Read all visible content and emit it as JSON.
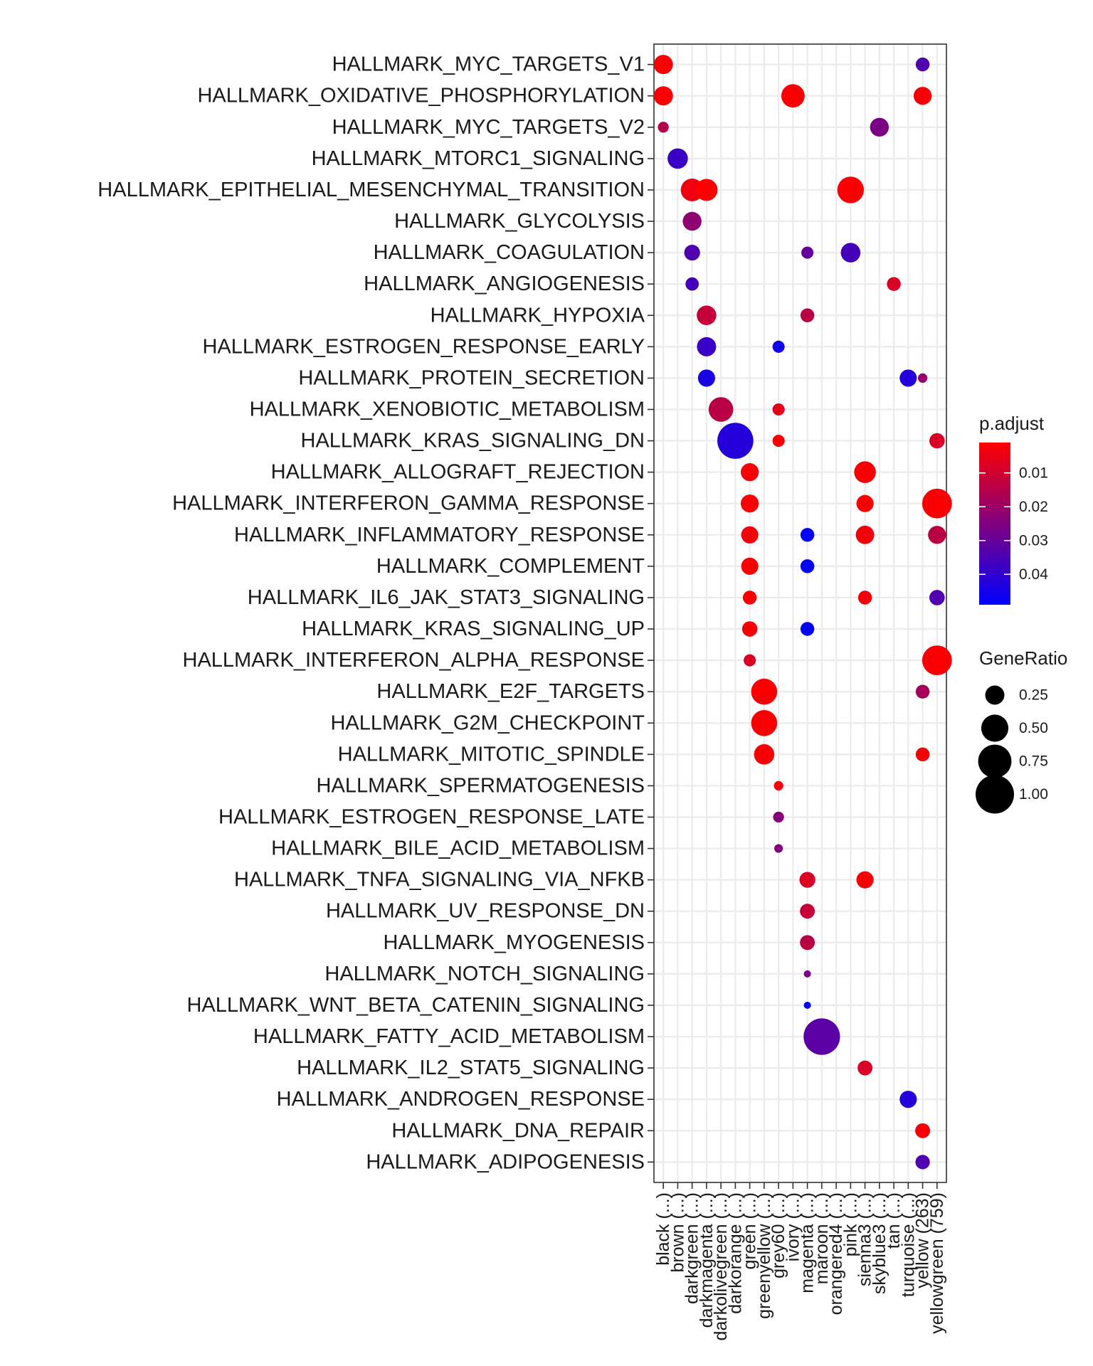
{
  "chart_data": {
    "type": "scatter",
    "title": "",
    "xlabel": "",
    "ylabel": "",
    "x_categories": [
      "black (...)",
      "brown (...)",
      "darkgreen (...)",
      "darkmagenta (...)",
      "darkolivegreen (...)",
      "darkorange (...)",
      "green (...)",
      "greenyellow (...)",
      "grey60 (...)",
      "ivory (...)",
      "magenta (...)",
      "maroon (...)",
      "orangered4 (...)",
      "pink (...)",
      "sienna3 (...)",
      "skyblue3 (...)",
      "tan (...)",
      "turquoise (...)",
      "yellow (263)",
      "yellowgreen (759)"
    ],
    "y_categories": [
      "HALLMARK_MYC_TARGETS_V1",
      "HALLMARK_OXIDATIVE_PHOSPHORYLATION",
      "HALLMARK_MYC_TARGETS_V2",
      "HALLMARK_MTORC1_SIGNALING",
      "HALLMARK_EPITHELIAL_MESENCHYMAL_TRANSITION",
      "HALLMARK_GLYCOLYSIS",
      "HALLMARK_COAGULATION",
      "HALLMARK_ANGIOGENESIS",
      "HALLMARK_HYPOXIA",
      "HALLMARK_ESTROGEN_RESPONSE_EARLY",
      "HALLMARK_PROTEIN_SECRETION",
      "HALLMARK_XENOBIOTIC_METABOLISM",
      "HALLMARK_KRAS_SIGNALING_DN",
      "HALLMARK_ALLOGRAFT_REJECTION",
      "HALLMARK_INTERFERON_GAMMA_RESPONSE",
      "HALLMARK_INFLAMMATORY_RESPONSE",
      "HALLMARK_COMPLEMENT",
      "HALLMARK_IL6_JAK_STAT3_SIGNALING",
      "HALLMARK_KRAS_SIGNALING_UP",
      "HALLMARK_INTERFERON_ALPHA_RESPONSE",
      "HALLMARK_E2F_TARGETS",
      "HALLMARK_G2M_CHECKPOINT",
      "HALLMARK_MITOTIC_SPINDLE",
      "HALLMARK_SPERMATOGENESIS",
      "HALLMARK_ESTROGEN_RESPONSE_LATE",
      "HALLMARK_BILE_ACID_METABOLISM",
      "HALLMARK_TNFA_SIGNALING_VIA_NFKB",
      "HALLMARK_UV_RESPONSE_DN",
      "HALLMARK_MYOGENESIS",
      "HALLMARK_NOTCH_SIGNALING",
      "HALLMARK_WNT_BETA_CATENIN_SIGNALING",
      "HALLMARK_FATTY_ACID_METABOLISM",
      "HALLMARK_IL2_STAT5_SIGNALING",
      "HALLMARK_ANDROGEN_RESPONSE",
      "HALLMARK_DNA_REPAIR",
      "HALLMARK_ADIPOGENESIS"
    ],
    "points": [
      {
        "x": "black (...)",
        "y": "HALLMARK_MYC_TARGETS_V1",
        "gene_ratio": 0.25,
        "p_adjust": 0.002
      },
      {
        "x": "black (...)",
        "y": "HALLMARK_OXIDATIVE_PHOSPHORYLATION",
        "gene_ratio": 0.25,
        "p_adjust": 0.002
      },
      {
        "x": "black (...)",
        "y": "HALLMARK_MYC_TARGETS_V2",
        "gene_ratio": 0.08,
        "p_adjust": 0.015
      },
      {
        "x": "brown (...)",
        "y": "HALLMARK_MTORC1_SIGNALING",
        "gene_ratio": 0.28,
        "p_adjust": 0.038
      },
      {
        "x": "darkgreen (...)",
        "y": "HALLMARK_EPITHELIAL_MESENCHYMAL_TRANSITION",
        "gene_ratio": 0.35,
        "p_adjust": 0.004
      },
      {
        "x": "darkgreen (...)",
        "y": "HALLMARK_GLYCOLYSIS",
        "gene_ratio": 0.24,
        "p_adjust": 0.022
      },
      {
        "x": "darkgreen (...)",
        "y": "HALLMARK_COAGULATION",
        "gene_ratio": 0.17,
        "p_adjust": 0.034
      },
      {
        "x": "darkgreen (...)",
        "y": "HALLMARK_ANGIOGENESIS",
        "gene_ratio": 0.12,
        "p_adjust": 0.036
      },
      {
        "x": "darkmagenta (...)",
        "y": "HALLMARK_EPITHELIAL_MESENCHYMAL_TRANSITION",
        "gene_ratio": 0.33,
        "p_adjust": 0.001
      },
      {
        "x": "darkmagenta (...)",
        "y": "HALLMARK_HYPOXIA",
        "gene_ratio": 0.26,
        "p_adjust": 0.012
      },
      {
        "x": "darkmagenta (...)",
        "y": "HALLMARK_ESTROGEN_RESPONSE_EARLY",
        "gene_ratio": 0.25,
        "p_adjust": 0.038
      },
      {
        "x": "darkmagenta (...)",
        "y": "HALLMARK_PROTEIN_SECRETION",
        "gene_ratio": 0.2,
        "p_adjust": 0.044
      },
      {
        "x": "darkolivegreen (...)",
        "y": "HALLMARK_XENOBIOTIC_METABOLISM",
        "gene_ratio": 0.41,
        "p_adjust": 0.014
      },
      {
        "x": "darkorange (...)",
        "y": "HALLMARK_KRAS_SIGNALING_DN",
        "gene_ratio": 0.88,
        "p_adjust": 0.042
      },
      {
        "x": "green (...)",
        "y": "HALLMARK_ALLOGRAFT_REJECTION",
        "gene_ratio": 0.22,
        "p_adjust": 0.002
      },
      {
        "x": "green (...)",
        "y": "HALLMARK_INTERFERON_GAMMA_RESPONSE",
        "gene_ratio": 0.22,
        "p_adjust": 0.002
      },
      {
        "x": "green (...)",
        "y": "HALLMARK_INFLAMMATORY_RESPONSE",
        "gene_ratio": 0.2,
        "p_adjust": 0.003
      },
      {
        "x": "green (...)",
        "y": "HALLMARK_COMPLEMENT",
        "gene_ratio": 0.2,
        "p_adjust": 0.002
      },
      {
        "x": "green (...)",
        "y": "HALLMARK_IL6_JAK_STAT3_SIGNALING",
        "gene_ratio": 0.13,
        "p_adjust": 0.002
      },
      {
        "x": "green (...)",
        "y": "HALLMARK_KRAS_SIGNALING_UP",
        "gene_ratio": 0.16,
        "p_adjust": 0.002
      },
      {
        "x": "green (...)",
        "y": "HALLMARK_INTERFERON_ALPHA_RESPONSE",
        "gene_ratio": 0.1,
        "p_adjust": 0.008
      },
      {
        "x": "greenyellow (...)",
        "y": "HALLMARK_E2F_TARGETS",
        "gene_ratio": 0.46,
        "p_adjust": 0.002
      },
      {
        "x": "greenyellow (...)",
        "y": "HALLMARK_G2M_CHECKPOINT",
        "gene_ratio": 0.46,
        "p_adjust": 0.002
      },
      {
        "x": "greenyellow (...)",
        "y": "HALLMARK_MITOTIC_SPINDLE",
        "gene_ratio": 0.28,
        "p_adjust": 0.002
      },
      {
        "x": "grey60 (...)",
        "y": "HALLMARK_ESTROGEN_RESPONSE_EARLY",
        "gene_ratio": 0.1,
        "p_adjust": 0.046
      },
      {
        "x": "grey60 (...)",
        "y": "HALLMARK_XENOBIOTIC_METABOLISM",
        "gene_ratio": 0.1,
        "p_adjust": 0.006
      },
      {
        "x": "grey60 (...)",
        "y": "HALLMARK_KRAS_SIGNALING_DN",
        "gene_ratio": 0.1,
        "p_adjust": 0.002
      },
      {
        "x": "grey60 (...)",
        "y": "HALLMARK_SPERMATOGENESIS",
        "gene_ratio": 0.06,
        "p_adjust": 0.002
      },
      {
        "x": "grey60 (...)",
        "y": "HALLMARK_ESTROGEN_RESPONSE_LATE",
        "gene_ratio": 0.08,
        "p_adjust": 0.024
      },
      {
        "x": "grey60 (...)",
        "y": "HALLMARK_BILE_ACID_METABOLISM",
        "gene_ratio": 0.05,
        "p_adjust": 0.024
      },
      {
        "x": "ivory (...)",
        "y": "HALLMARK_OXIDATIVE_PHOSPHORYLATION",
        "gene_ratio": 0.37,
        "p_adjust": 0.002
      },
      {
        "x": "magenta (...)",
        "y": "HALLMARK_COAGULATION",
        "gene_ratio": 0.1,
        "p_adjust": 0.03
      },
      {
        "x": "magenta (...)",
        "y": "HALLMARK_HYPOXIA",
        "gene_ratio": 0.13,
        "p_adjust": 0.014
      },
      {
        "x": "magenta (...)",
        "y": "HALLMARK_INFLAMMATORY_RESPONSE",
        "gene_ratio": 0.13,
        "p_adjust": 0.048
      },
      {
        "x": "magenta (...)",
        "y": "HALLMARK_COMPLEMENT",
        "gene_ratio": 0.13,
        "p_adjust": 0.048
      },
      {
        "x": "magenta (...)",
        "y": "HALLMARK_KRAS_SIGNALING_UP",
        "gene_ratio": 0.13,
        "p_adjust": 0.048
      },
      {
        "x": "magenta (...)",
        "y": "HALLMARK_TNFA_SIGNALING_VIA_NFKB",
        "gene_ratio": 0.17,
        "p_adjust": 0.008
      },
      {
        "x": "magenta (...)",
        "y": "HALLMARK_UV_RESPONSE_DN",
        "gene_ratio": 0.15,
        "p_adjust": 0.012
      },
      {
        "x": "magenta (...)",
        "y": "HALLMARK_MYOGENESIS",
        "gene_ratio": 0.15,
        "p_adjust": 0.014
      },
      {
        "x": "magenta (...)",
        "y": "HALLMARK_NOTCH_SIGNALING",
        "gene_ratio": 0.03,
        "p_adjust": 0.026
      },
      {
        "x": "magenta (...)",
        "y": "HALLMARK_WNT_BETA_CATENIN_SIGNALING",
        "gene_ratio": 0.02,
        "p_adjust": 0.048
      },
      {
        "x": "maroon (...)",
        "y": "HALLMARK_FATTY_ACID_METABOLISM",
        "gene_ratio": 0.9,
        "p_adjust": 0.032
      },
      {
        "x": "pink (...)",
        "y": "HALLMARK_EPITHELIAL_MESENCHYMAL_TRANSITION",
        "gene_ratio": 0.48,
        "p_adjust": 0.002
      },
      {
        "x": "pink (...)",
        "y": "HALLMARK_COAGULATION",
        "gene_ratio": 0.26,
        "p_adjust": 0.036
      },
      {
        "x": "sienna3 (...)",
        "y": "HALLMARK_ALLOGRAFT_REJECTION",
        "gene_ratio": 0.32,
        "p_adjust": 0.002
      },
      {
        "x": "sienna3 (...)",
        "y": "HALLMARK_INTERFERON_GAMMA_RESPONSE",
        "gene_ratio": 0.2,
        "p_adjust": 0.002
      },
      {
        "x": "sienna3 (...)",
        "y": "HALLMARK_INFLAMMATORY_RESPONSE",
        "gene_ratio": 0.23,
        "p_adjust": 0.003
      },
      {
        "x": "sienna3 (...)",
        "y": "HALLMARK_IL6_JAK_STAT3_SIGNALING",
        "gene_ratio": 0.13,
        "p_adjust": 0.003
      },
      {
        "x": "sienna3 (...)",
        "y": "HALLMARK_TNFA_SIGNALING_VIA_NFKB",
        "gene_ratio": 0.2,
        "p_adjust": 0.002
      },
      {
        "x": "sienna3 (...)",
        "y": "HALLMARK_IL2_STAT5_SIGNALING",
        "gene_ratio": 0.15,
        "p_adjust": 0.008
      },
      {
        "x": "skyblue3 (...)",
        "y": "HALLMARK_MYC_TARGETS_V2",
        "gene_ratio": 0.24,
        "p_adjust": 0.026
      },
      {
        "x": "tan (...)",
        "y": "HALLMARK_ANGIOGENESIS",
        "gene_ratio": 0.13,
        "p_adjust": 0.008
      },
      {
        "x": "turquoise (...)",
        "y": "HALLMARK_PROTEIN_SECRETION",
        "gene_ratio": 0.2,
        "p_adjust": 0.042
      },
      {
        "x": "turquoise (...)",
        "y": "HALLMARK_ANDROGEN_RESPONSE",
        "gene_ratio": 0.2,
        "p_adjust": 0.042
      },
      {
        "x": "yellow (263)",
        "y": "HALLMARK_MYC_TARGETS_V1",
        "gene_ratio": 0.13,
        "p_adjust": 0.034
      },
      {
        "x": "yellow (263)",
        "y": "HALLMARK_OXIDATIVE_PHOSPHORYLATION",
        "gene_ratio": 0.22,
        "p_adjust": 0.002
      },
      {
        "x": "yellow (263)",
        "y": "HALLMARK_PROTEIN_SECRETION",
        "gene_ratio": 0.06,
        "p_adjust": 0.02
      },
      {
        "x": "yellow (263)",
        "y": "HALLMARK_E2F_TARGETS",
        "gene_ratio": 0.13,
        "p_adjust": 0.018
      },
      {
        "x": "yellow (263)",
        "y": "HALLMARK_MITOTIC_SPINDLE",
        "gene_ratio": 0.13,
        "p_adjust": 0.002
      },
      {
        "x": "yellow (263)",
        "y": "HALLMARK_DNA_REPAIR",
        "gene_ratio": 0.15,
        "p_adjust": 0.002
      },
      {
        "x": "yellow (263)",
        "y": "HALLMARK_ADIPOGENESIS",
        "gene_ratio": 0.14,
        "p_adjust": 0.034
      },
      {
        "x": "yellowgreen (759)",
        "y": "HALLMARK_KRAS_SIGNALING_DN",
        "gene_ratio": 0.16,
        "p_adjust": 0.008
      },
      {
        "x": "yellowgreen (759)",
        "y": "HALLMARK_INTERFERON_GAMMA_RESPONSE",
        "gene_ratio": 0.6,
        "p_adjust": 0.002
      },
      {
        "x": "yellowgreen (759)",
        "y": "HALLMARK_INFLAMMATORY_RESPONSE",
        "gene_ratio": 0.22,
        "p_adjust": 0.014
      },
      {
        "x": "yellowgreen (759)",
        "y": "HALLMARK_IL6_JAK_STAT3_SIGNALING",
        "gene_ratio": 0.16,
        "p_adjust": 0.034
      },
      {
        "x": "yellowgreen (759)",
        "y": "HALLMARK_INTERFERON_ALPHA_RESPONSE",
        "gene_ratio": 0.6,
        "p_adjust": 0.002
      }
    ],
    "color_legend": {
      "title": "p.adjust",
      "low_color": "#ff0000",
      "high_color": "#0000ff",
      "range": [
        0.001,
        0.049
      ],
      "ticks": [
        0.01,
        0.02,
        0.03,
        0.04
      ],
      "tick_labels": [
        "0.01",
        "0.02",
        "0.03",
        "0.04"
      ]
    },
    "size_legend": {
      "title": "GeneRatio",
      "values": [
        0.25,
        0.5,
        0.75,
        1.0
      ],
      "labels": [
        "0.25",
        "0.50",
        "0.75",
        "1.00"
      ]
    },
    "grid": true,
    "legend_position": "right"
  }
}
